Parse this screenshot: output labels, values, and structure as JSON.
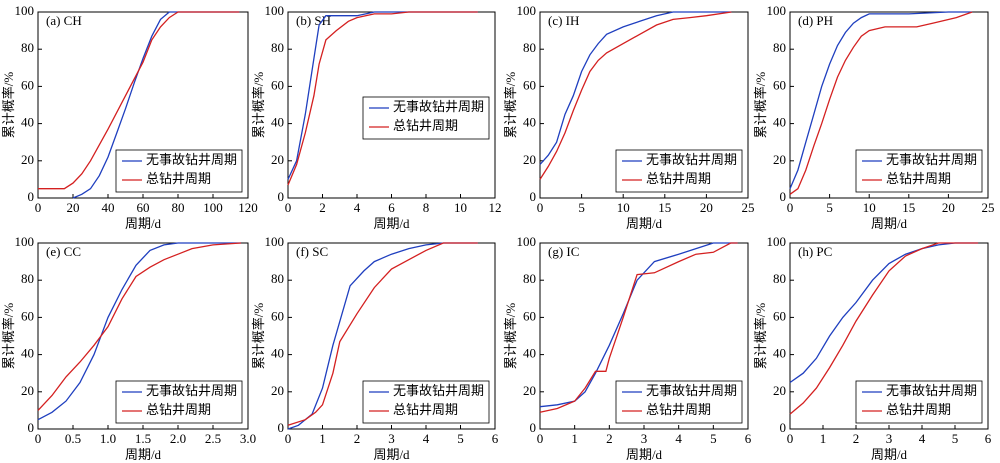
{
  "chart_data": [
    {
      "type": "line",
      "title": "(a) CH",
      "xlabel": "周期/d",
      "ylabel": "累计概率/%",
      "xlim": [
        0,
        120
      ],
      "xticks": [
        0,
        20,
        40,
        60,
        80,
        100,
        120
      ],
      "ylim": [
        0,
        100
      ],
      "yticks": [
        0,
        20,
        40,
        60,
        80,
        100
      ],
      "legend": "lower right",
      "series": [
        {
          "name": "无事故钻井周期",
          "color": "#1f3fbf",
          "x": [
            20,
            25,
            30,
            35,
            40,
            45,
            50,
            55,
            60,
            65,
            70,
            75,
            115
          ],
          "values": [
            0,
            2,
            5,
            12,
            22,
            35,
            48,
            62,
            75,
            87,
            96,
            100,
            100
          ]
        },
        {
          "name": "总钻井周期",
          "color": "#d42020",
          "x": [
            0,
            15,
            20,
            25,
            30,
            40,
            50,
            60,
            65,
            70,
            75,
            80,
            115
          ],
          "values": [
            5,
            5,
            8,
            13,
            20,
            37,
            55,
            73,
            85,
            92,
            97,
            100,
            100
          ]
        }
      ]
    },
    {
      "type": "line",
      "title": "(b) SH",
      "xlabel": "周期/d",
      "ylabel": "累计概率/%",
      "xlim": [
        0,
        12
      ],
      "xticks": [
        0,
        2,
        4,
        6,
        8,
        10,
        12
      ],
      "ylim": [
        0,
        100
      ],
      "yticks": [
        0,
        20,
        40,
        60,
        80,
        100
      ],
      "legend": "center right",
      "series": [
        {
          "name": "无事故钻井周期",
          "color": "#1f3fbf",
          "x": [
            0,
            0.5,
            1,
            1.5,
            1.8,
            2.2,
            4,
            5,
            11
          ],
          "values": [
            10,
            20,
            45,
            75,
            93,
            98,
            98,
            100,
            100
          ]
        },
        {
          "name": "总钻井周期",
          "color": "#d42020",
          "x": [
            0,
            0.5,
            1,
            1.5,
            1.8,
            2.2,
            2.8,
            3.5,
            4,
            5,
            6,
            7,
            11
          ],
          "values": [
            7,
            18,
            35,
            55,
            72,
            85,
            90,
            95,
            97,
            99,
            99,
            100,
            100
          ]
        }
      ]
    },
    {
      "type": "line",
      "title": "(c) IH",
      "xlabel": "周期/d",
      "ylabel": "累计概率/%",
      "xlim": [
        0,
        25
      ],
      "xticks": [
        0,
        5,
        10,
        15,
        20,
        25
      ],
      "ylim": [
        0,
        100
      ],
      "yticks": [
        0,
        20,
        40,
        60,
        80,
        100
      ],
      "legend": "lower right",
      "series": [
        {
          "name": "无事故钻井周期",
          "color": "#1f3fbf",
          "x": [
            0,
            1,
            2,
            3,
            4,
            5,
            6,
            7,
            8,
            10,
            12,
            14,
            16,
            23
          ],
          "values": [
            18,
            23,
            30,
            45,
            55,
            68,
            77,
            83,
            88,
            92,
            95,
            98,
            100,
            100
          ]
        },
        {
          "name": "总钻井周期",
          "color": "#d42020",
          "x": [
            0,
            1,
            2,
            3,
            4,
            5,
            6,
            7,
            8,
            10,
            12,
            14,
            16,
            18,
            20,
            23
          ],
          "values": [
            10,
            17,
            25,
            35,
            47,
            58,
            68,
            74,
            78,
            83,
            88,
            93,
            96,
            97,
            98,
            100
          ]
        }
      ]
    },
    {
      "type": "line",
      "title": "(d) PH",
      "xlabel": "周期/d",
      "ylabel": "累计概率/%",
      "xlim": [
        0,
        25
      ],
      "xticks": [
        0,
        5,
        10,
        15,
        20,
        25
      ],
      "ylim": [
        0,
        100
      ],
      "yticks": [
        0,
        20,
        40,
        60,
        80,
        100
      ],
      "legend": "lower right",
      "series": [
        {
          "name": "无事故钻井周期",
          "color": "#1f3fbf",
          "x": [
            0,
            1,
            2,
            3,
            4,
            5,
            6,
            7,
            8,
            9,
            10,
            15,
            20,
            23
          ],
          "values": [
            5,
            15,
            30,
            45,
            60,
            72,
            82,
            89,
            94,
            97,
            99,
            99,
            100,
            100
          ]
        },
        {
          "name": "总钻井周期",
          "color": "#d42020",
          "x": [
            0,
            1,
            2,
            3,
            4,
            5,
            6,
            7,
            8,
            9,
            10,
            12,
            16,
            18,
            21,
            23
          ],
          "values": [
            2,
            5,
            15,
            28,
            40,
            53,
            65,
            74,
            81,
            87,
            90,
            92,
            92,
            94,
            97,
            100
          ]
        }
      ]
    },
    {
      "type": "line",
      "title": "(e) CC",
      "xlabel": "周期/d",
      "ylabel": "累计概率/%",
      "xlim": [
        0,
        3
      ],
      "xticks": [
        0,
        0.5,
        {
          "value": 1,
          "label": "1.0"
        },
        1.5,
        {
          "value": 2,
          "label": "2.0"
        },
        2.5,
        {
          "value": 3,
          "label": "3.0"
        }
      ],
      "ylim": [
        0,
        100
      ],
      "yticks": [
        0,
        20,
        40,
        60,
        80,
        100
      ],
      "legend": "lower right",
      "series": [
        {
          "name": "无事故钻井周期",
          "color": "#1f3fbf",
          "x": [
            0,
            0.2,
            0.4,
            0.6,
            0.8,
            1.0,
            1.2,
            1.4,
            1.6,
            1.8,
            2.0,
            2.9
          ],
          "values": [
            5,
            9,
            15,
            25,
            40,
            60,
            75,
            88,
            96,
            99,
            100,
            100
          ]
        },
        {
          "name": "总钻井周期",
          "color": "#d42020",
          "x": [
            0,
            0.2,
            0.4,
            0.6,
            0.8,
            1.0,
            1.2,
            1.4,
            1.6,
            1.8,
            2.0,
            2.2,
            2.5,
            2.9
          ],
          "values": [
            10,
            18,
            28,
            36,
            45,
            55,
            70,
            82,
            87,
            91,
            94,
            97,
            99,
            100
          ]
        }
      ]
    },
    {
      "type": "line",
      "title": "(f) SC",
      "xlabel": "周期/d",
      "ylabel": "累计概率/%",
      "xlim": [
        0,
        6
      ],
      "xticks": [
        0,
        1,
        2,
        3,
        4,
        5,
        6
      ],
      "ylim": [
        0,
        100
      ],
      "yticks": [
        0,
        20,
        40,
        60,
        80,
        100
      ],
      "legend": "lower right",
      "series": [
        {
          "name": "无事故钻井周期",
          "color": "#1f3fbf",
          "x": [
            0,
            0.3,
            0.7,
            1.0,
            1.3,
            1.8,
            2.2,
            2.5,
            3,
            3.5,
            4,
            4.5,
            5.5
          ],
          "values": [
            0,
            2,
            8,
            22,
            45,
            77,
            85,
            90,
            94,
            97,
            99,
            100,
            100
          ]
        },
        {
          "name": "总钻井周期",
          "color": "#d42020",
          "x": [
            0,
            0.5,
            0.8,
            1,
            1.3,
            1.5,
            2,
            2.5,
            3,
            3.5,
            4,
            4.5,
            5.5
          ],
          "values": [
            2,
            5,
            9,
            13,
            30,
            47,
            62,
            76,
            86,
            91,
            96,
            100,
            100
          ]
        }
      ]
    },
    {
      "type": "line",
      "title": "(g) IC",
      "xlabel": "周期/d",
      "ylabel": "累计概率/%",
      "xlim": [
        0,
        6
      ],
      "xticks": [
        0,
        1,
        2,
        3,
        4,
        5,
        6
      ],
      "ylim": [
        0,
        100
      ],
      "yticks": [
        0,
        20,
        40,
        60,
        80,
        100
      ],
      "legend": "lower right",
      "series": [
        {
          "name": "无事故钻井周期",
          "color": "#1f3fbf",
          "x": [
            0,
            0.5,
            1,
            1.3,
            1.6,
            2,
            2.4,
            2.8,
            3.3,
            4,
            4.5,
            5,
            5.7
          ],
          "values": [
            12,
            13,
            15,
            20,
            30,
            45,
            62,
            80,
            90,
            94,
            97,
            100,
            100
          ]
        },
        {
          "name": "总钻井周期",
          "color": "#d42020",
          "x": [
            0,
            0.5,
            1,
            1.3,
            1.6,
            1.9,
            2,
            2.4,
            2.8,
            3.3,
            4,
            4.5,
            5,
            5.5,
            5.7
          ],
          "values": [
            9,
            11,
            15,
            22,
            31,
            31,
            38,
            60,
            83,
            84,
            90,
            94,
            95,
            100,
            100
          ]
        }
      ]
    },
    {
      "type": "line",
      "title": "(h) PC",
      "xlabel": "周期/d",
      "ylabel": "累计概率/%",
      "xlim": [
        0,
        6
      ],
      "xticks": [
        0,
        1,
        2,
        3,
        4,
        5,
        6
      ],
      "ylim": [
        0,
        100
      ],
      "yticks": [
        0,
        20,
        40,
        60,
        80,
        100
      ],
      "legend": "lower right",
      "series": [
        {
          "name": "无事故钻井周期",
          "color": "#1f3fbf",
          "x": [
            0,
            0.4,
            0.8,
            1.2,
            1.6,
            2,
            2.5,
            3,
            3.5,
            4,
            4.5,
            5,
            5.7
          ],
          "values": [
            25,
            30,
            38,
            50,
            60,
            68,
            80,
            89,
            94,
            97,
            99,
            100,
            100
          ]
        },
        {
          "name": "总钻井周期",
          "color": "#d42020",
          "x": [
            0,
            0.4,
            0.8,
            1.2,
            1.6,
            2,
            2.5,
            3,
            3.5,
            4,
            4.5,
            5.7
          ],
          "values": [
            8,
            14,
            22,
            33,
            45,
            58,
            72,
            85,
            93,
            97,
            100,
            100
          ]
        }
      ]
    }
  ]
}
